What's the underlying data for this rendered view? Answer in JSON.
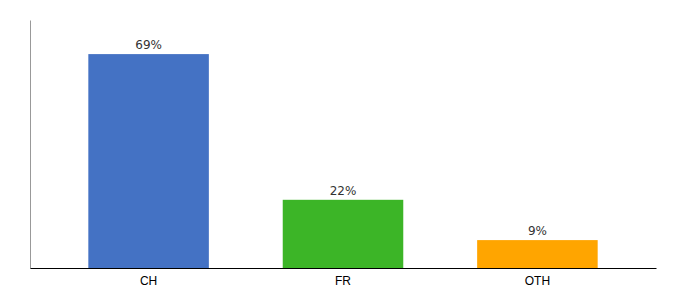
{
  "chart_data": {
    "type": "bar",
    "categories": [
      "CH",
      "FR",
      "OTH"
    ],
    "values": [
      69,
      22,
      9
    ],
    "value_labels": [
      "69%",
      "22%",
      "9%"
    ],
    "colors": [
      "#4472C4",
      "#3CB527",
      "#FFA500"
    ],
    "ylim": [
      0,
      80
    ],
    "data_labels": true,
    "tick_labels": "x",
    "grid": false
  }
}
